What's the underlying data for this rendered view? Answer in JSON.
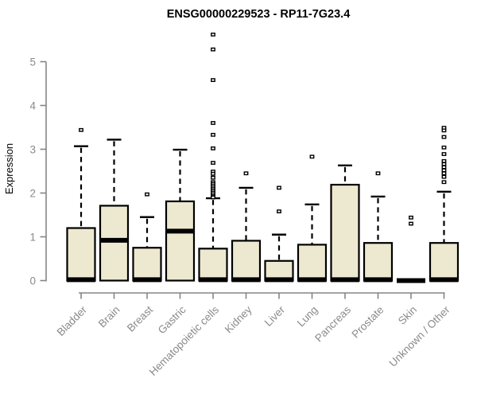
{
  "chart_data": {
    "type": "box",
    "title": "ENSG00000229523 - RP11-7G23.4",
    "xlabel": "",
    "ylabel": "Expression",
    "ylim": [
      0,
      5
    ],
    "yticks": [
      0,
      1,
      2,
      3,
      4,
      5
    ],
    "grid": false,
    "legend": "none",
    "categories": [
      "Bladder",
      "Brain",
      "Breast",
      "Gastric",
      "Hematopoietic cells",
      "Kidney",
      "Liver",
      "Lung",
      "Pancreas",
      "Prostate",
      "Skin",
      "Unknown / Other"
    ],
    "boxes": [
      {
        "category": "Bladder",
        "q1": 0,
        "median": 0.02,
        "q3": 1.2,
        "whisker_low": 0,
        "whisker_high": 3.07,
        "outliers": [
          3.44
        ]
      },
      {
        "category": "Brain",
        "q1": 0,
        "median": 0.92,
        "q3": 1.71,
        "whisker_low": 0,
        "whisker_high": 3.22,
        "outliers": []
      },
      {
        "category": "Breast",
        "q1": 0,
        "median": 0.02,
        "q3": 0.75,
        "whisker_low": 0,
        "whisker_high": 1.45,
        "outliers": [
          1.97
        ]
      },
      {
        "category": "Gastric",
        "q1": 0,
        "median": 1.13,
        "q3": 1.81,
        "whisker_low": 0,
        "whisker_high": 2.99,
        "outliers": []
      },
      {
        "category": "Hematopoietic cells",
        "q1": 0,
        "median": 0.02,
        "q3": 0.73,
        "whisker_low": 0,
        "whisker_high": 1.88,
        "outliers": [
          5.62,
          5.28,
          4.58,
          3.6,
          3.33,
          3.02,
          2.69,
          2.49,
          2.44,
          2.35,
          2.25,
          2.21,
          2.17,
          2.13,
          2.09,
          2.05,
          2.01,
          1.97,
          1.93,
          1.9
        ]
      },
      {
        "category": "Kidney",
        "q1": 0,
        "median": 0.02,
        "q3": 0.91,
        "whisker_low": 0,
        "whisker_high": 2.12,
        "outliers": [
          2.45
        ]
      },
      {
        "category": "Liver",
        "q1": 0,
        "median": 0.02,
        "q3": 0.45,
        "whisker_low": 0,
        "whisker_high": 1.05,
        "outliers": [
          2.12,
          1.58
        ]
      },
      {
        "category": "Lung",
        "q1": 0,
        "median": 0.02,
        "q3": 0.82,
        "whisker_low": 0,
        "whisker_high": 1.74,
        "outliers": [
          2.83
        ]
      },
      {
        "category": "Pancreas",
        "q1": 0,
        "median": 0.02,
        "q3": 2.19,
        "whisker_low": 0,
        "whisker_high": 2.63,
        "outliers": []
      },
      {
        "category": "Prostate",
        "q1": 0,
        "median": 0.02,
        "q3": 0.86,
        "whisker_low": 0,
        "whisker_high": 1.92,
        "outliers": [
          2.45
        ]
      },
      {
        "category": "Skin",
        "q1": 0,
        "median": 0.0,
        "q3": 0.0,
        "whisker_low": 0,
        "whisker_high": 0.0,
        "outliers": [
          1.44,
          1.3
        ]
      },
      {
        "category": "Unknown / Other",
        "q1": 0,
        "median": 0.02,
        "q3": 0.86,
        "whisker_low": 0,
        "whisker_high": 2.03,
        "outliers": [
          3.49,
          3.43,
          3.28,
          3.04,
          2.89,
          2.73,
          2.66,
          2.59,
          2.52,
          2.45,
          2.37,
          2.25
        ]
      }
    ],
    "colors": {
      "background": "#ffffff",
      "box_fill": "#EDE8D0",
      "box_border": "#000000",
      "median": "#000000",
      "whisker": "#000000",
      "outlier_fill": "#ffffff",
      "outlier_stroke": "#000000",
      "axis": "#858585",
      "label_text": "#8a8a8a",
      "title_text": "#000000"
    }
  }
}
